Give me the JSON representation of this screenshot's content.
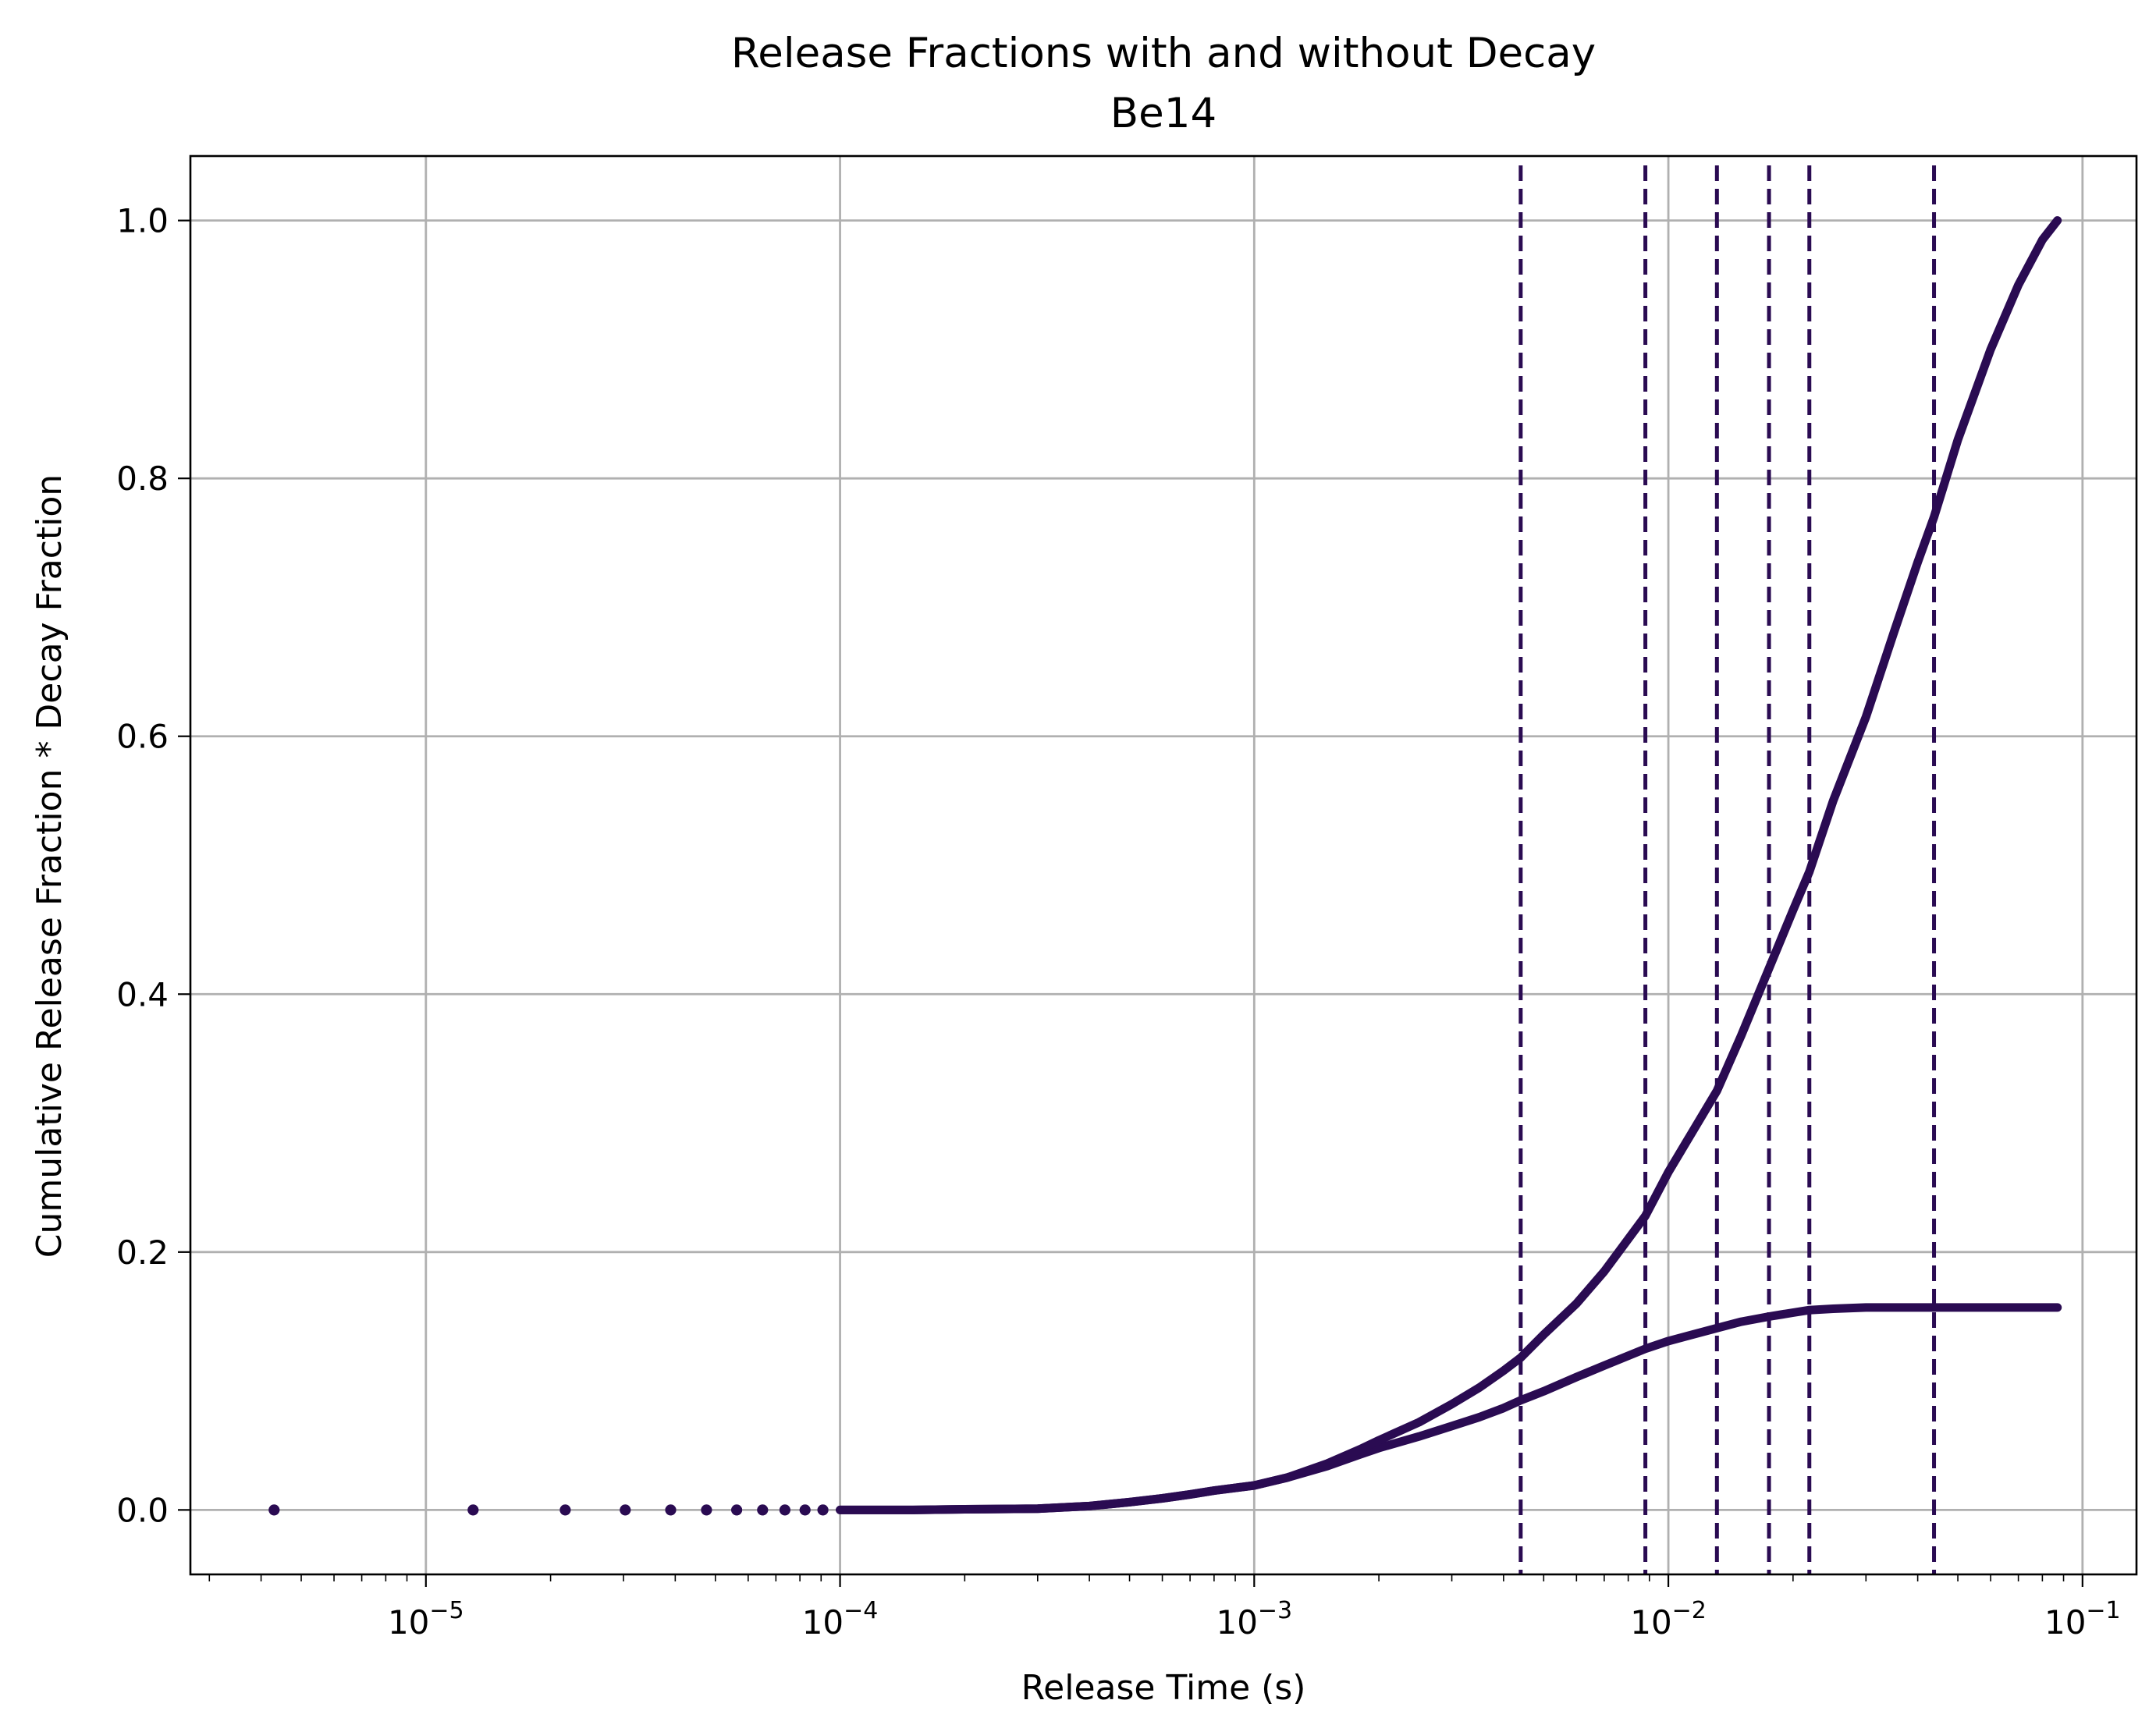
{
  "chart_data": {
    "type": "scatter",
    "title": "Release Fractions with and without Decay",
    "subtitle": "Be14",
    "xlabel": "Release Time (s)",
    "ylabel": "Cumulative Release Fraction * Decay Fraction",
    "xscale": "log",
    "xlim": [
      2.7e-06,
      0.135
    ],
    "ylim": [
      -0.05,
      1.05
    ],
    "grid": true,
    "x_ticks": [
      {
        "base": "10",
        "exp": "−5",
        "value": 1e-05
      },
      {
        "base": "10",
        "exp": "−4",
        "value": 0.0001
      },
      {
        "base": "10",
        "exp": "−3",
        "value": 0.001
      },
      {
        "base": "10",
        "exp": "−2",
        "value": 0.01
      },
      {
        "base": "10",
        "exp": "−1",
        "value": 0.1
      }
    ],
    "y_ticks": [
      {
        "label": "0.0",
        "value": 0.0
      },
      {
        "label": "0.2",
        "value": 0.2
      },
      {
        "label": "0.4",
        "value": 0.4
      },
      {
        "label": "0.6",
        "value": 0.6
      },
      {
        "label": "0.8",
        "value": 0.8
      },
      {
        "label": "1.0",
        "value": 1.0
      }
    ],
    "color": "#2a0b52",
    "vertical_lines": [
      0.0044,
      0.0088,
      0.0131,
      0.0175,
      0.0219,
      0.0438
    ],
    "series": [
      {
        "x": [
          4.3e-06,
          1.3e-05,
          2.17e-05,
          3.03e-05,
          3.9e-05,
          4.76e-05,
          5.63e-05,
          6.5e-05,
          7.36e-05,
          8.23e-05,
          9.09e-05,
          0.0001,
          0.00015,
          0.0002,
          0.0003,
          0.0004,
          0.0005,
          0.0006,
          0.0007,
          0.0008,
          0.001,
          0.0012,
          0.0015,
          0.0018,
          0.002,
          0.0025,
          0.003,
          0.0035,
          0.004,
          0.0044,
          0.005,
          0.006,
          0.007,
          0.0088,
          0.01,
          0.0131,
          0.015,
          0.0175,
          0.02,
          0.0219,
          0.025,
          0.03,
          0.035,
          0.04,
          0.0438,
          0.05,
          0.06,
          0.07,
          0.08,
          0.087
        ],
        "y": [
          0.0,
          0.0,
          0.0,
          0.0,
          0.0,
          0.0,
          0.0,
          0.0,
          0.0,
          0.0,
          0.0,
          0.0,
          0.0,
          0.0005,
          0.001,
          0.003,
          0.006,
          0.009,
          0.012,
          0.015,
          0.019,
          0.025,
          0.034,
          0.043,
          0.048,
          0.057,
          0.065,
          0.072,
          0.079,
          0.085,
          0.092,
          0.103,
          0.112,
          0.125,
          0.131,
          0.141,
          0.146,
          0.15,
          0.153,
          0.155,
          0.156,
          0.157,
          0.157,
          0.157,
          0.157,
          0.157,
          0.157,
          0.157,
          0.157,
          0.157
        ]
      },
      {
        "x": [
          4.3e-06,
          1.3e-05,
          2.17e-05,
          3.03e-05,
          3.9e-05,
          4.76e-05,
          5.63e-05,
          6.5e-05,
          7.36e-05,
          8.23e-05,
          9.09e-05,
          0.0001,
          0.00015,
          0.0002,
          0.0003,
          0.0004,
          0.0005,
          0.0006,
          0.0007,
          0.0008,
          0.001,
          0.0012,
          0.0015,
          0.0018,
          0.002,
          0.0025,
          0.003,
          0.0035,
          0.004,
          0.0044,
          0.005,
          0.006,
          0.007,
          0.0088,
          0.01,
          0.0131,
          0.015,
          0.0175,
          0.02,
          0.0219,
          0.025,
          0.03,
          0.035,
          0.04,
          0.0438,
          0.05,
          0.06,
          0.07,
          0.08,
          0.087
        ],
        "y": [
          0.0,
          0.0,
          0.0,
          0.0,
          0.0,
          0.0,
          0.0,
          0.0,
          0.0,
          0.0,
          0.0,
          0.0,
          0.0,
          0.0005,
          0.001,
          0.003,
          0.006,
          0.009,
          0.012,
          0.015,
          0.019,
          0.025,
          0.036,
          0.047,
          0.054,
          0.068,
          0.082,
          0.095,
          0.108,
          0.118,
          0.136,
          0.16,
          0.185,
          0.228,
          0.262,
          0.325,
          0.368,
          0.42,
          0.465,
          0.495,
          0.55,
          0.615,
          0.68,
          0.735,
          0.77,
          0.83,
          0.9,
          0.95,
          0.985,
          1.0
        ]
      }
    ]
  }
}
